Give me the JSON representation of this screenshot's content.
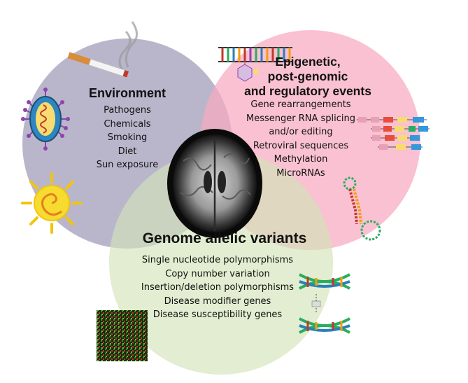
{
  "circles": {
    "environment": {
      "title": "Environment",
      "items": [
        "Pathogens",
        "Chemicals",
        "Smoking",
        "Diet",
        "Sun exposure"
      ],
      "color": "#a9a6c0"
    },
    "epigenetic": {
      "title_lines": [
        "Epigenetic,",
        "post-genomic",
        "and regulatory events"
      ],
      "items": [
        "Gene rearrangements",
        "Messenger RNA splicing",
        "and/or editing",
        "Retroviral sequences",
        "Methylation",
        "MicroRNAs"
      ],
      "color": "#f7a9bf"
    },
    "genome": {
      "title": "Genome allelic variants",
      "items": [
        "Single nucleotide polymorphisms",
        "Copy number variation",
        "Insertion/deletion polymorphisms",
        "Disease modifier genes",
        "Disease susceptibility genes"
      ],
      "color": "#d3e4b8"
    }
  },
  "icons": {
    "cigarette": "cigarette-icon",
    "virus": "virus-icon",
    "sun": "sun-icon",
    "dna_strand": "dna-strand-icon",
    "brain_mri": "brain-mri-image",
    "splicing": "splicing-diagram-icon",
    "hairpin": "rna-hairpin-icon",
    "microarray": "microarray-image",
    "dna_helix": "dna-helix-icon"
  }
}
